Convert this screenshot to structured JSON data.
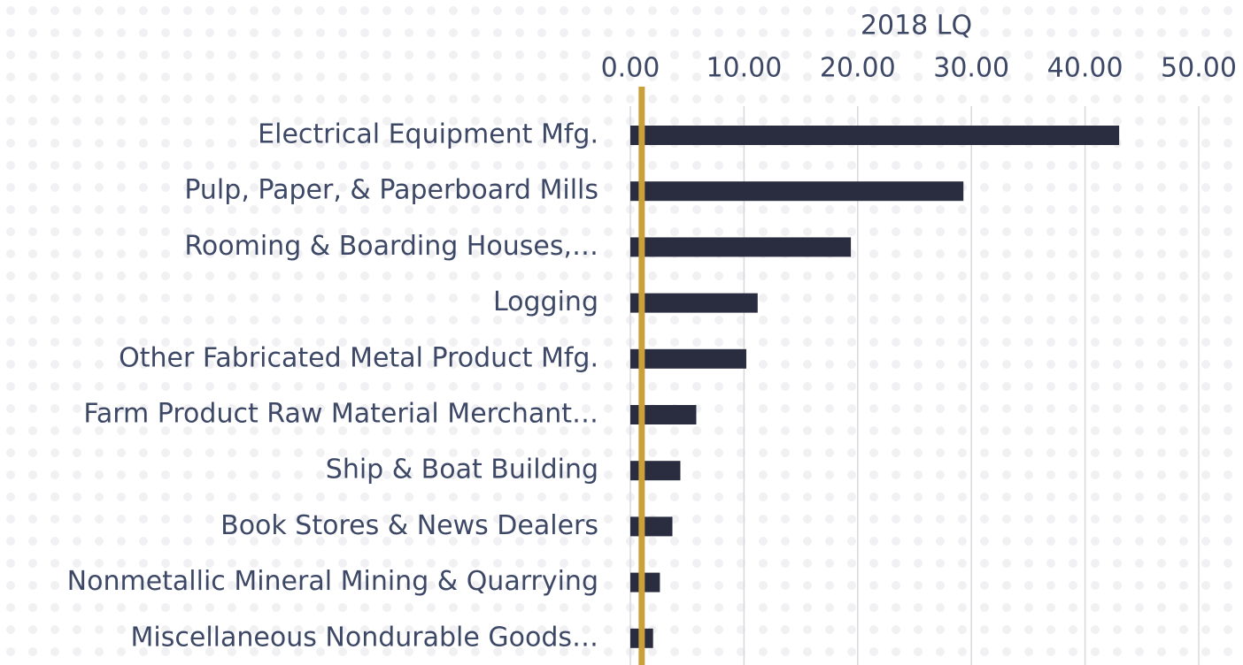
{
  "chart_data": {
    "type": "hbar",
    "x_label": "2018 LQ",
    "categories": [
      "Electrical Equipment Mfg.",
      "Pulp, Paper, & Paperboard Mills",
      "Rooming & Boarding Houses,…",
      "Logging",
      "Other Fabricated Metal Product Mfg.",
      "Farm Product Raw Material Merchant…",
      "Ship & Boat Building",
      "Book Stores & News Dealers",
      "Nonmetallic Mineral Mining & Quarrying",
      "Miscellaneous Nondurable Goods…"
    ],
    "values": [
      43.0,
      29.3,
      19.4,
      11.2,
      10.2,
      5.8,
      4.4,
      3.7,
      2.6,
      2.0
    ],
    "color": "#2a2d40",
    "xlim": [
      0,
      50
    ],
    "xticks": [
      {
        "value": 0,
        "label": "0.00"
      },
      {
        "value": 10,
        "label": "10.00"
      },
      {
        "value": 20,
        "label": "20.00"
      },
      {
        "value": 30,
        "label": "30.00"
      },
      {
        "value": 40,
        "label": "40.00"
      },
      {
        "value": 50,
        "label": "50.00"
      }
    ],
    "grid": true,
    "reference_line": {
      "value": 1,
      "color": "#c9a03a"
    }
  }
}
